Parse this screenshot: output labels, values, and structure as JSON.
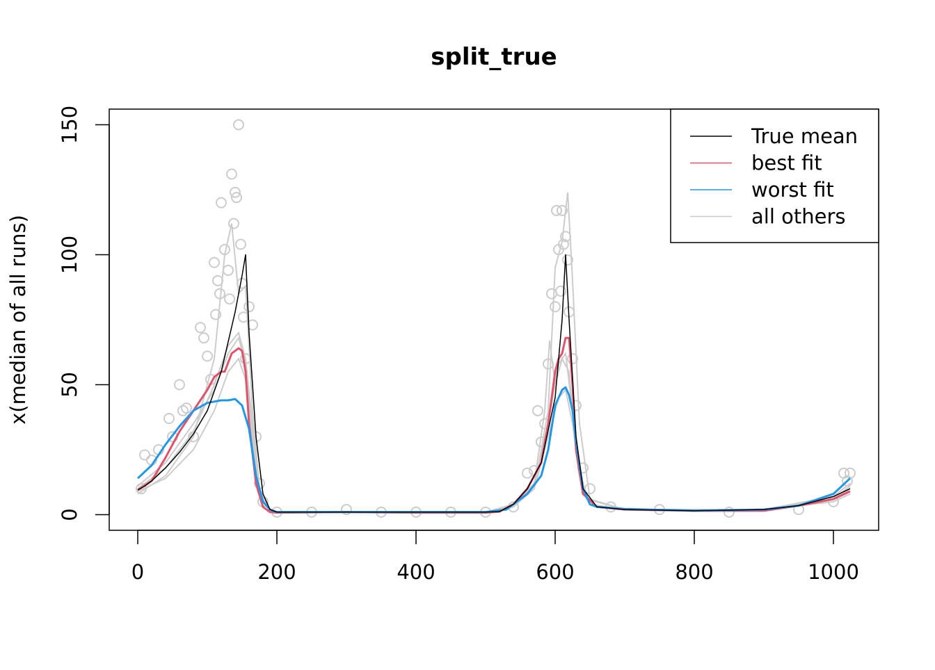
{
  "chart_data": {
    "type": "line",
    "title": "split_true",
    "xlabel": "",
    "ylabel": "x(median of all runs)",
    "xlim": [
      -41,
      1065
    ],
    "ylim": [
      -6,
      156
    ],
    "xticks": [
      0,
      200,
      400,
      600,
      800,
      1000
    ],
    "yticks": [
      0,
      50,
      100,
      150
    ],
    "grid": false,
    "legend": {
      "placement": "top-right",
      "entries": [
        {
          "label": "True mean",
          "color": "#000000"
        },
        {
          "label": "best fit",
          "color": "#DF536B"
        },
        {
          "label": "worst fit",
          "color": "#2297E6"
        },
        {
          "label": "all others",
          "color": "#CCCCCC"
        }
      ]
    },
    "series": [
      {
        "name": "True mean",
        "color": "#000000",
        "x": [
          0,
          10,
          20,
          40,
          60,
          80,
          100,
          120,
          140,
          150,
          155,
          160,
          170,
          180,
          190,
          200,
          300,
          400,
          500,
          520,
          540,
          560,
          580,
          600,
          610,
          615,
          620,
          630,
          640,
          660,
          700,
          800,
          900,
          950,
          1000,
          1024
        ],
        "y": [
          9.5,
          11,
          13,
          18,
          24,
          31,
          40,
          55,
          78,
          92,
          100,
          70,
          30,
          8,
          2,
          1,
          1,
          1,
          1,
          1.2,
          4,
          10,
          20,
          45,
          75,
          100,
          75,
          30,
          10,
          3,
          2,
          1.5,
          2,
          3.5,
          7,
          10
        ]
      },
      {
        "name": "best fit",
        "color": "#DF536B",
        "x": [
          0,
          20,
          40,
          60,
          80,
          100,
          110,
          120,
          125,
          135,
          145,
          150,
          155,
          160,
          170,
          180,
          190,
          200,
          300,
          400,
          500,
          520,
          540,
          560,
          580,
          590,
          600,
          605,
          610,
          615,
          620,
          625,
          630,
          640,
          660,
          700,
          800,
          900,
          950,
          1000,
          1024
        ],
        "y": [
          9.5,
          13,
          22,
          32,
          40,
          48,
          53,
          55,
          55,
          62,
          64,
          63,
          55,
          35,
          12,
          3,
          1,
          0.8,
          1,
          0.8,
          0.8,
          1.2,
          4,
          10,
          20,
          35,
          55,
          60,
          62,
          68,
          68,
          50,
          25,
          8,
          3,
          2,
          1.5,
          1.5,
          3.5,
          6,
          9
        ]
      },
      {
        "name": "worst fit",
        "color": "#2297E6",
        "x": [
          0,
          20,
          40,
          60,
          80,
          100,
          120,
          130,
          140,
          150,
          160,
          170,
          180,
          190,
          200,
          300,
          400,
          500,
          530,
          560,
          580,
          590,
          600,
          610,
          615,
          620,
          625,
          630,
          640,
          650,
          660,
          700,
          800,
          900,
          950,
          1000,
          1024
        ],
        "y": [
          14,
          19,
          27,
          34,
          40,
          43,
          44,
          44,
          44.5,
          42,
          33,
          15,
          5,
          2,
          1,
          1,
          1,
          1,
          2,
          8,
          15,
          25,
          42,
          48,
          49,
          46,
          40,
          28,
          10,
          4,
          3,
          2.2,
          1.5,
          2,
          3.5,
          8,
          14
        ]
      }
    ],
    "others": {
      "color": "#CCCCCC",
      "lines": [
        {
          "x": [
            0,
            40,
            80,
            110,
            125,
            135,
            145,
            155,
            165,
            175,
            190,
            200,
            500,
            540,
            570,
            590,
            600,
            610,
            618,
            625,
            635,
            650,
            700,
            900,
            1000,
            1024
          ],
          "y": [
            8,
            15,
            30,
            60,
            100,
            112,
            85,
            88,
            40,
            10,
            2,
            1,
            1,
            3,
            10,
            40,
            95,
            105,
            124,
            90,
            35,
            6,
            2,
            2,
            6,
            10
          ]
        },
        {
          "x": [
            0,
            40,
            80,
            110,
            130,
            145,
            155,
            165,
            175,
            190,
            200,
            500,
            540,
            570,
            585,
            592,
            600,
            610,
            620,
            630,
            645,
            700,
            900,
            1000,
            1024
          ],
          "y": [
            10,
            18,
            32,
            50,
            65,
            70,
            60,
            35,
            10,
            2,
            1,
            1,
            3,
            12,
            40,
            67,
            50,
            60,
            55,
            25,
            6,
            2,
            2,
            6,
            11
          ]
        },
        {
          "x": [
            0,
            40,
            80,
            110,
            130,
            145,
            155,
            165,
            175,
            190,
            200,
            500,
            540,
            570,
            590,
            605,
            615,
            625,
            635,
            650,
            700,
            900,
            1000,
            1024
          ],
          "y": [
            9,
            14,
            25,
            40,
            55,
            60,
            52,
            28,
            8,
            2,
            1,
            1,
            3,
            10,
            30,
            45,
            48,
            35,
            15,
            4,
            2,
            2,
            5,
            8
          ]
        },
        {
          "x": [
            0,
            40,
            80,
            110,
            130,
            145,
            155,
            165,
            175,
            190,
            200,
            500,
            540,
            570,
            590,
            605,
            615,
            625,
            635,
            650,
            700,
            900,
            1000,
            1024
          ],
          "y": [
            11,
            20,
            35,
            48,
            62,
            68,
            58,
            30,
            9,
            2,
            1,
            1,
            4,
            12,
            35,
            58,
            62,
            40,
            15,
            4,
            2,
            2,
            7,
            12
          ]
        }
      ],
      "points": {
        "x": [
          5,
          10,
          20,
          30,
          45,
          50,
          60,
          65,
          70,
          80,
          90,
          95,
          100,
          105,
          110,
          112,
          115,
          118,
          120,
          125,
          130,
          132,
          135,
          138,
          140,
          142,
          145,
          148,
          150,
          152,
          155,
          160,
          165,
          170,
          175,
          180,
          200,
          250,
          300,
          350,
          400,
          450,
          500,
          540,
          560,
          570,
          575,
          580,
          585,
          590,
          595,
          600,
          602,
          605,
          608,
          610,
          612,
          615,
          618,
          620,
          625,
          630,
          640,
          650,
          680,
          750,
          850,
          950,
          1000,
          1015,
          1020,
          1024
        ],
        "y": [
          10,
          23,
          21,
          25,
          37,
          30,
          50,
          40,
          41,
          30,
          72,
          68,
          61,
          52,
          97,
          77,
          90,
          85,
          120,
          102,
          94,
          83,
          131,
          112,
          124,
          122,
          150,
          104,
          89,
          76,
          60,
          80,
          73,
          30,
          12,
          5,
          1,
          1,
          2,
          1,
          1,
          1,
          1,
          3,
          16,
          17,
          40,
          28,
          35,
          58,
          85,
          80,
          117,
          102,
          86,
          117,
          104,
          107,
          98,
          78,
          60,
          42,
          18,
          10,
          3,
          2,
          1,
          2,
          5,
          16,
          13,
          16
        ]
      }
    }
  }
}
